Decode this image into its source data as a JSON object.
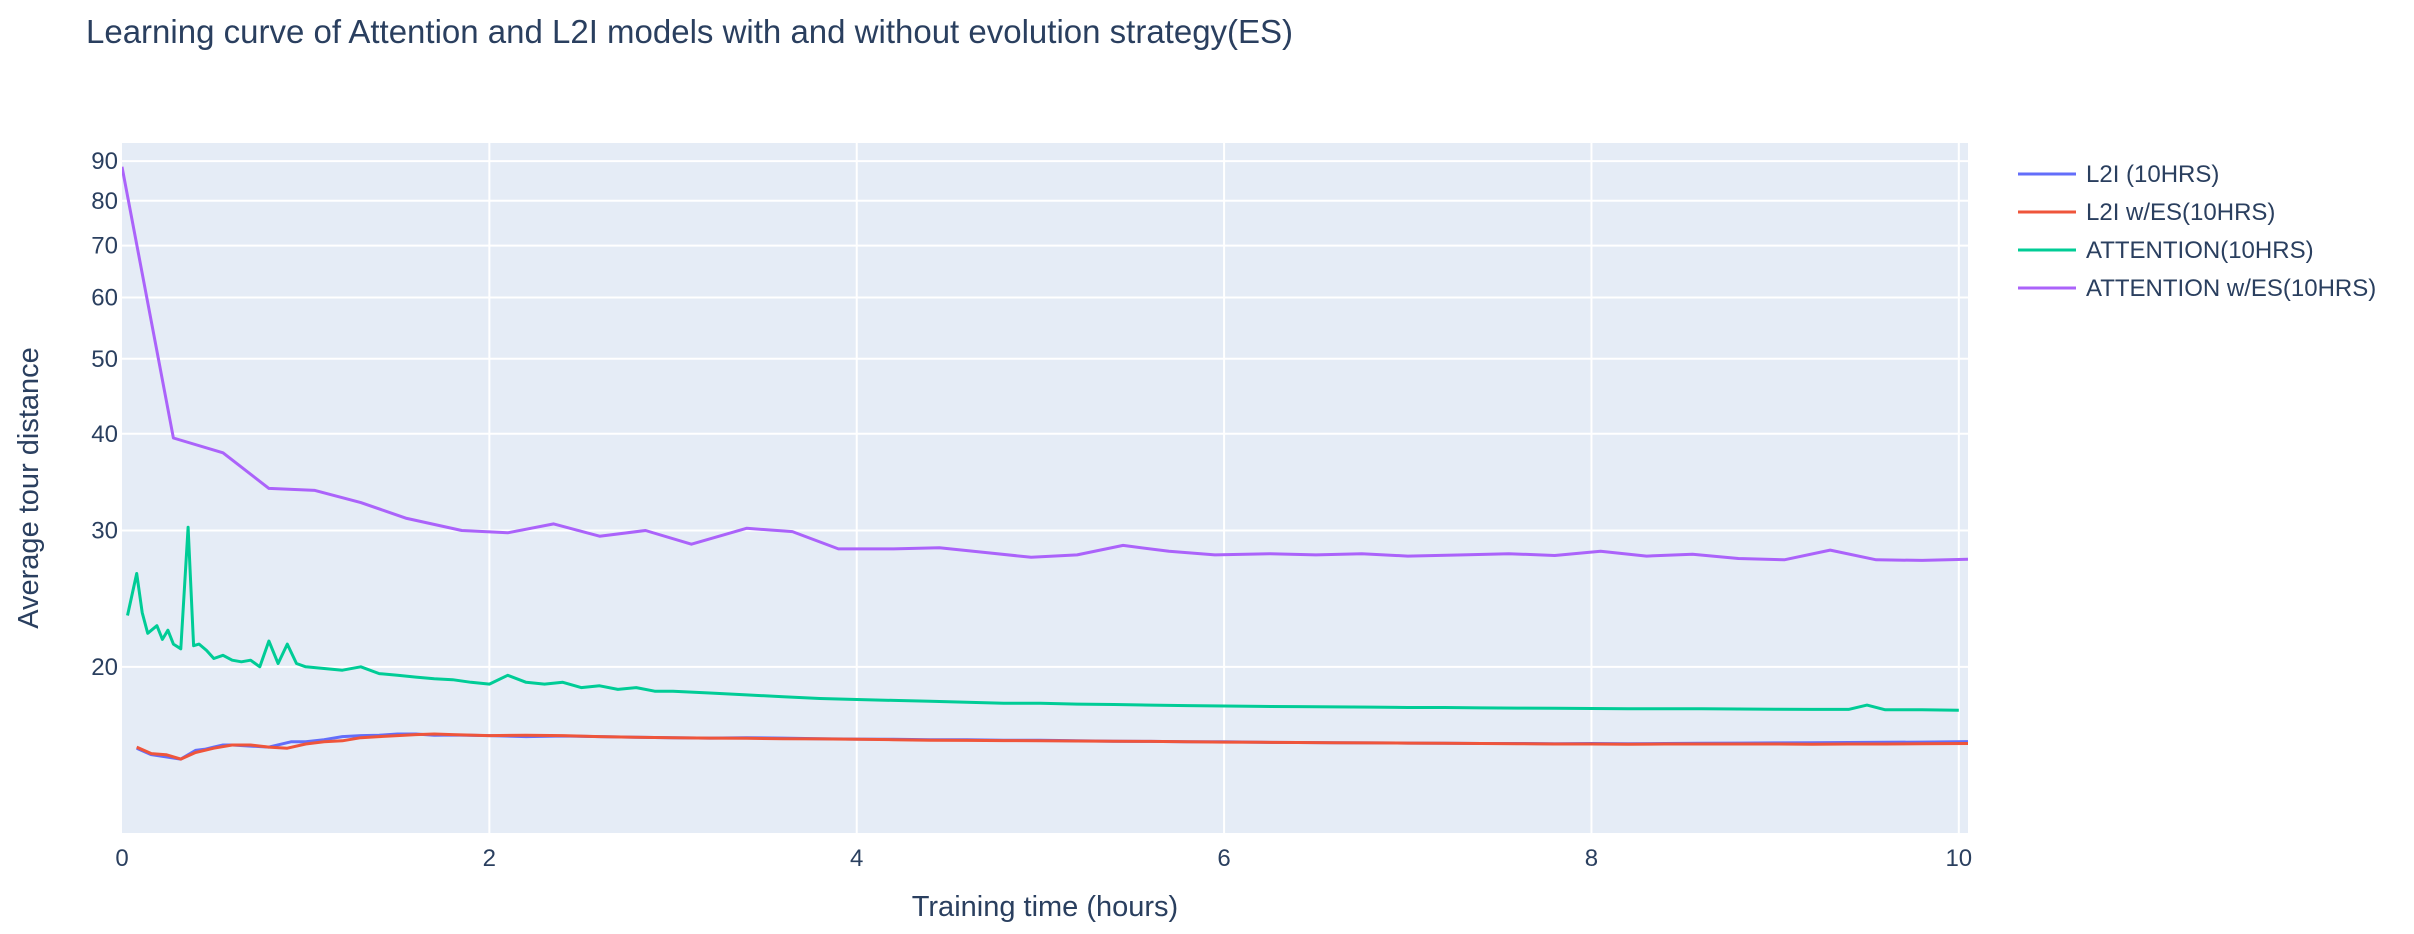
{
  "colors": {
    "plot_bg": "#e5ecf6",
    "grid": "#ffffff",
    "text": "#2a3f5f",
    "L2I": "#636efa",
    "L2I_ES": "#ef553b",
    "ATTENTION": "#00cc96",
    "ATTENTION_ES": "#ab63fa"
  },
  "chart_data": {
    "type": "line",
    "title": "Learning curve of Attention and L2I models with and without evolution strategy(ES)",
    "xlabel": "Training time (hours)",
    "ylabel": "Average tour distance",
    "xlim": [
      0,
      10.05
    ],
    "ylim": [
      12.2,
      95
    ],
    "y_scale": "log",
    "grid": true,
    "legend_position": "right",
    "x_ticks": [
      0,
      2,
      4,
      6,
      8,
      10
    ],
    "x_tick_labels": [
      "0",
      "2",
      "4",
      "6",
      "8",
      "10"
    ],
    "y_ticks": [
      20,
      30,
      40,
      50,
      60,
      70,
      80,
      90
    ],
    "y_tick_labels": [
      "20",
      "30",
      "40",
      "50",
      "60",
      "70",
      "80",
      "90"
    ],
    "series": [
      {
        "name": "L2I (10HRS)",
        "color_key": "L2I",
        "x": [
          0.08,
          0.16,
          0.24,
          0.32,
          0.4,
          0.45,
          0.5,
          0.55,
          0.6,
          0.7,
          0.8,
          0.92,
          1.0,
          1.05,
          1.1,
          1.2,
          1.3,
          1.4,
          1.5,
          1.6,
          1.7,
          1.8,
          2.0,
          2.2,
          2.4,
          2.6,
          2.8,
          3.0,
          3.2,
          3.4,
          3.6,
          3.8,
          4.0,
          4.2,
          4.4,
          4.6,
          4.8,
          5.0,
          5.2,
          5.4,
          5.6,
          5.8,
          6.0,
          6.2,
          6.4,
          6.6,
          6.8,
          7.0,
          7.2,
          7.4,
          7.6,
          7.8,
          8.0,
          8.2,
          8.4,
          8.6,
          8.8,
          9.0,
          9.2,
          9.4,
          9.6,
          9.8,
          10.05
        ],
        "values": [
          15.7,
          15.4,
          15.3,
          15.2,
          15.6,
          15.65,
          15.75,
          15.85,
          15.85,
          15.8,
          15.75,
          16.0,
          16.0,
          16.05,
          16.1,
          16.25,
          16.3,
          16.32,
          16.38,
          16.38,
          16.32,
          16.33,
          16.3,
          16.25,
          16.28,
          16.25,
          16.22,
          16.2,
          16.18,
          16.2,
          16.18,
          16.15,
          16.13,
          16.12,
          16.1,
          16.1,
          16.08,
          16.08,
          16.05,
          16.03,
          16.02,
          16.0,
          16.0,
          15.98,
          15.97,
          15.96,
          15.95,
          15.94,
          15.93,
          15.92,
          15.92,
          15.91,
          15.92,
          15.91,
          15.92,
          15.93,
          15.94,
          15.95,
          15.96,
          15.97,
          15.98,
          15.99,
          16.01
        ]
      },
      {
        "name": "L2I w/ES(10HRS)",
        "color_key": "L2I_ES",
        "x": [
          0.08,
          0.16,
          0.24,
          0.32,
          0.4,
          0.5,
          0.6,
          0.7,
          0.8,
          0.9,
          1.0,
          1.1,
          1.2,
          1.3,
          1.4,
          1.5,
          1.6,
          1.7,
          1.8,
          2.0,
          2.2,
          2.4,
          2.6,
          2.8,
          3.0,
          3.2,
          3.4,
          3.6,
          3.8,
          4.0,
          4.2,
          4.4,
          4.6,
          4.8,
          5.0,
          5.2,
          5.4,
          5.6,
          5.8,
          6.0,
          6.2,
          6.4,
          6.6,
          6.8,
          7.0,
          7.2,
          7.4,
          7.6,
          7.8,
          8.0,
          8.2,
          8.4,
          8.6,
          8.8,
          9.0,
          9.2,
          9.4,
          9.6,
          9.8,
          10.05
        ],
        "values": [
          15.75,
          15.45,
          15.4,
          15.2,
          15.5,
          15.7,
          15.85,
          15.85,
          15.75,
          15.7,
          15.9,
          16.0,
          16.05,
          16.2,
          16.25,
          16.3,
          16.35,
          16.38,
          16.35,
          16.3,
          16.32,
          16.3,
          16.25,
          16.22,
          16.2,
          16.18,
          16.17,
          16.15,
          16.14,
          16.12,
          16.1,
          16.08,
          16.07,
          16.06,
          16.05,
          16.04,
          16.03,
          16.02,
          16.0,
          15.99,
          15.98,
          15.97,
          15.96,
          15.95,
          15.94,
          15.93,
          15.92,
          15.91,
          15.9,
          15.9,
          15.89,
          15.9,
          15.9,
          15.9,
          15.9,
          15.89,
          15.9,
          15.9,
          15.91,
          15.92
        ]
      },
      {
        "name": "ATTENTION(10HRS)",
        "color_key": "ATTENTION",
        "x": [
          0.03,
          0.08,
          0.11,
          0.14,
          0.19,
          0.22,
          0.25,
          0.28,
          0.32,
          0.36,
          0.39,
          0.42,
          0.46,
          0.5,
          0.55,
          0.6,
          0.65,
          0.7,
          0.75,
          0.8,
          0.85,
          0.9,
          0.95,
          1.0,
          1.1,
          1.2,
          1.3,
          1.4,
          1.5,
          1.6,
          1.7,
          1.8,
          1.9,
          2.0,
          2.1,
          2.2,
          2.3,
          2.4,
          2.5,
          2.6,
          2.7,
          2.8,
          2.9,
          3.0,
          3.2,
          3.4,
          3.6,
          3.8,
          4.0,
          4.2,
          4.4,
          4.6,
          4.8,
          5.0,
          5.2,
          5.4,
          5.6,
          5.8,
          6.0,
          6.2,
          6.4,
          6.6,
          6.8,
          7.0,
          7.2,
          7.4,
          7.6,
          7.8,
          8.0,
          8.2,
          8.4,
          8.6,
          8.8,
          9.0,
          9.2,
          9.4,
          9.5,
          9.6,
          9.8,
          10.0
        ],
        "values": [
          23.3,
          26.4,
          23.5,
          22.1,
          22.6,
          21.7,
          22.3,
          21.4,
          21.1,
          30.3,
          21.3,
          21.4,
          21.0,
          20.5,
          20.7,
          20.4,
          20.3,
          20.4,
          20.0,
          21.6,
          20.2,
          21.4,
          20.2,
          20.0,
          19.9,
          19.8,
          20.0,
          19.6,
          19.5,
          19.4,
          19.3,
          19.25,
          19.1,
          19.0,
          19.5,
          19.1,
          19.0,
          19.1,
          18.8,
          18.9,
          18.7,
          18.8,
          18.6,
          18.6,
          18.5,
          18.4,
          18.3,
          18.2,
          18.15,
          18.1,
          18.05,
          18.0,
          17.95,
          17.95,
          17.9,
          17.88,
          17.85,
          17.82,
          17.8,
          17.78,
          17.77,
          17.75,
          17.74,
          17.72,
          17.72,
          17.7,
          17.69,
          17.68,
          17.67,
          17.66,
          17.66,
          17.65,
          17.64,
          17.63,
          17.62,
          17.62,
          17.85,
          17.6,
          17.6,
          17.58
        ]
      },
      {
        "name": "ATTENTION w/ES(10HRS)",
        "color_key": "ATTENTION_ES",
        "x": [
          0.0,
          0.28,
          0.55,
          0.8,
          1.05,
          1.3,
          1.55,
          1.85,
          2.1,
          2.35,
          2.6,
          2.85,
          3.1,
          3.4,
          3.65,
          3.9,
          4.2,
          4.45,
          4.7,
          4.95,
          5.2,
          5.45,
          5.7,
          5.95,
          6.25,
          6.5,
          6.75,
          7.0,
          7.3,
          7.55,
          7.8,
          8.05,
          8.3,
          8.55,
          8.8,
          9.05,
          9.3,
          9.55,
          9.8,
          10.05
        ],
        "values": [
          88.5,
          39.5,
          37.8,
          34.0,
          33.8,
          32.6,
          31.1,
          30.0,
          29.8,
          30.6,
          29.5,
          30.0,
          28.8,
          30.2,
          29.9,
          28.4,
          28.4,
          28.5,
          28.1,
          27.7,
          27.9,
          28.7,
          28.2,
          27.9,
          28.0,
          27.9,
          28.0,
          27.8,
          27.9,
          28.0,
          27.85,
          28.2,
          27.8,
          27.95,
          27.6,
          27.5,
          28.3,
          27.5,
          27.45,
          27.55
        ]
      }
    ]
  }
}
